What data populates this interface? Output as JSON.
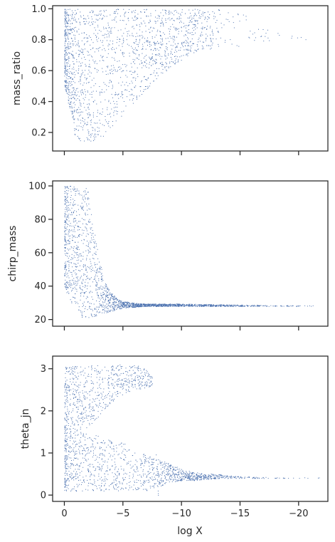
{
  "chart_data": {
    "type": "scatter",
    "layout": "3 stacked panels with shared x axis",
    "xlabel": "log X",
    "xlim": [
      1,
      -22.5
    ],
    "xticks": [
      0,
      -5,
      -10,
      -15,
      -20
    ],
    "xtick_labels": [
      "0",
      "−5",
      "−10",
      "−15",
      "−20"
    ],
    "grid": false,
    "marker_color": "#4c72b0",
    "axis_color": "#262626",
    "panels": [
      {
        "ylabel": "mass_ratio",
        "ylim": [
          0.08,
          1.02
        ],
        "yticks": [
          0.2,
          0.4,
          0.6,
          0.8,
          1.0
        ],
        "ytick_labels": [
          "0.2",
          "0.4",
          "0.6",
          "0.8",
          "1.0"
        ],
        "x_tick_labels_visible": false,
        "density_profile": {
          "x_anchors": [
            0,
            -1,
            -2,
            -3,
            -4,
            -5,
            -6,
            -7,
            -8,
            -9,
            -10,
            -11,
            -12,
            -13,
            -14,
            -15,
            -16,
            -17,
            -18,
            -19,
            -20,
            -21,
            -22
          ],
          "y_lower": [
            0.5,
            0.14,
            0.14,
            0.14,
            0.23,
            0.32,
            0.4,
            0.48,
            0.55,
            0.62,
            0.67,
            0.7,
            0.72,
            0.74,
            0.75,
            0.76,
            0.78,
            0.79,
            0.8,
            0.8,
            0.8,
            0.8,
            0.8
          ],
          "y_upper": [
            1.0,
            1.0,
            1.0,
            1.0,
            1.0,
            1.0,
            1.0,
            1.0,
            1.0,
            1.0,
            1.0,
            1.0,
            1.0,
            1.0,
            1.0,
            0.98,
            0.93,
            0.88,
            0.85,
            0.83,
            0.82,
            0.82,
            0.82
          ],
          "relative_density": [
            1.0,
            1.0,
            0.95,
            0.9,
            0.9,
            0.9,
            0.95,
            1.0,
            1.0,
            1.0,
            0.95,
            0.8,
            0.55,
            0.35,
            0.2,
            0.12,
            0.08,
            0.05,
            0.03,
            0.02,
            0.01,
            0.01,
            0.0
          ]
        }
      },
      {
        "ylabel": "chirp_mass",
        "ylim": [
          16,
          103
        ],
        "yticks": [
          20,
          40,
          60,
          80,
          100
        ],
        "ytick_labels": [
          "20",
          "40",
          "60",
          "80",
          "100"
        ],
        "x_tick_labels_visible": false,
        "density_profile": {
          "x_anchors": [
            0,
            -0.5,
            -1,
            -1.5,
            -2,
            -2.5,
            -3,
            -3.5,
            -4,
            -4.5,
            -5,
            -6,
            -7,
            -8,
            -10,
            -12,
            -14,
            -16,
            -18,
            -20,
            -22
          ],
          "y_lower": [
            40,
            30,
            28,
            21,
            21,
            22,
            23,
            24,
            25,
            26,
            27,
            27.5,
            28,
            28,
            28,
            28,
            28,
            28,
            28,
            28,
            28
          ],
          "y_upper": [
            100,
            100,
            100,
            100,
            98,
            75,
            55,
            42,
            36,
            33,
            31,
            30,
            29.5,
            29.5,
            29.5,
            29.3,
            29,
            28.8,
            28.6,
            28.5,
            28.4
          ],
          "relative_density": [
            1.0,
            1.0,
            1.0,
            1.0,
            1.0,
            1.0,
            1.0,
            1.0,
            1.0,
            1.0,
            1.0,
            1.0,
            1.0,
            1.0,
            0.9,
            0.7,
            0.5,
            0.3,
            0.15,
            0.05,
            0.01
          ]
        }
      },
      {
        "ylabel": "theta_jn",
        "ylim": [
          -0.15,
          3.3
        ],
        "yticks": [
          0,
          1,
          2,
          3
        ],
        "ytick_labels": [
          "0",
          "1",
          "2",
          "3"
        ],
        "x_tick_labels_visible": true,
        "density_profile": {
          "x_anchors": [
            0,
            -1,
            -2,
            -3,
            -4,
            -5,
            -6,
            -7,
            -7.5,
            -8,
            -9,
            -10,
            -11,
            -12,
            -13,
            -14,
            -15,
            -16,
            -17,
            -18,
            -19,
            -20,
            -21,
            -22
          ],
          "lower_lo": [
            0.1,
            0.1,
            0.1,
            0.1,
            0.1,
            0.1,
            0.1,
            0.1,
            0.15,
            0.2,
            0.3,
            0.35,
            0.35,
            0.38,
            0.38,
            0.4,
            0.4,
            0.4,
            0.4,
            0.4,
            0.4,
            0.4,
            0.4,
            0.4
          ],
          "lower_hi": [
            1.5,
            1.5,
            1.5,
            1.4,
            1.3,
            1.25,
            1.1,
            0.95,
            0.9,
            0.85,
            0.75,
            0.62,
            0.55,
            0.52,
            0.5,
            0.47,
            0.45,
            0.44,
            0.43,
            0.42,
            0.42,
            0.42,
            0.42,
            0.42
          ],
          "upper_lo": [
            1.5,
            1.5,
            1.6,
            1.9,
            2.2,
            2.4,
            2.5,
            2.55,
            2.6,
            0,
            0,
            0,
            0,
            0,
            0,
            0,
            0,
            0,
            0,
            0,
            0,
            0,
            0,
            0
          ],
          "upper_hi": [
            3.05,
            3.1,
            3.1,
            3.1,
            3.1,
            3.1,
            3.1,
            3.0,
            2.8,
            0,
            0,
            0,
            0,
            0,
            0,
            0,
            0,
            0,
            0,
            0,
            0,
            0,
            0,
            0
          ],
          "gap_curve": {
            "y": [
              0.85,
              1.0,
              1.2,
              1.4,
              1.6,
              1.8,
              2.0,
              2.2,
              2.4,
              2.6
            ],
            "x": [
              -7.5,
              -6.5,
              -5.5,
              -5.0,
              -4.8,
              -4.9,
              -5.3,
              -6.0,
              -6.6,
              -7.1
            ]
          },
          "relative_density": [
            1.0,
            1.0,
            1.0,
            1.0,
            1.0,
            1.0,
            1.0,
            1.0,
            1.0,
            1.0,
            1.0,
            1.0,
            0.9,
            0.75,
            0.55,
            0.4,
            0.28,
            0.18,
            0.12,
            0.08,
            0.05,
            0.03,
            0.02,
            0.01
          ]
        }
      }
    ]
  }
}
